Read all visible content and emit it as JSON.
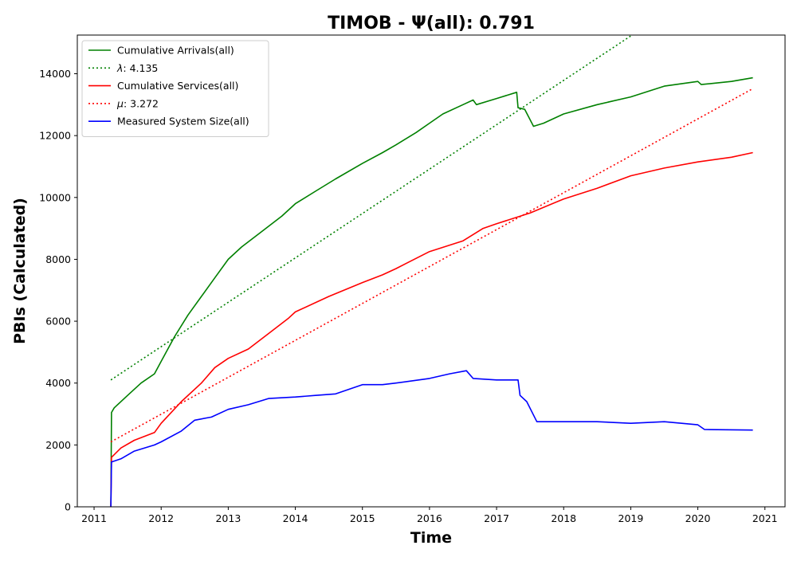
{
  "chart_data": {
    "type": "line",
    "title": "TIMOB -  Ψ(all): 0.791",
    "xlabel": "Time",
    "ylabel": "PBIs (Calculated)",
    "xlim": [
      2010.75,
      2021.3
    ],
    "ylim": [
      0,
      15250
    ],
    "x_ticks": [
      2011,
      2012,
      2013,
      2014,
      2015,
      2016,
      2017,
      2018,
      2019,
      2020,
      2021
    ],
    "x_tick_labels": [
      "2011",
      "2012",
      "2013",
      "2014",
      "2015",
      "2016",
      "2017",
      "2018",
      "2019",
      "2020",
      "2021"
    ],
    "y_ticks": [
      0,
      2000,
      4000,
      6000,
      8000,
      10000,
      12000,
      14000
    ],
    "y_tick_labels": [
      "0",
      "2000",
      "4000",
      "6000",
      "8000",
      "10000",
      "12000",
      "14000"
    ],
    "grid": false,
    "legend_position": "top-left",
    "series": [
      {
        "name": "Cumulative Arrivals(all)",
        "color": "#008000",
        "style": "solid",
        "points": [
          [
            2011.25,
            0
          ],
          [
            2011.26,
            3050
          ],
          [
            2011.3,
            3200
          ],
          [
            2011.5,
            3600
          ],
          [
            2011.7,
            4000
          ],
          [
            2011.9,
            4300
          ],
          [
            2012.0,
            4700
          ],
          [
            2012.2,
            5500
          ],
          [
            2012.4,
            6200
          ],
          [
            2012.6,
            6800
          ],
          [
            2012.8,
            7400
          ],
          [
            2013.0,
            8000
          ],
          [
            2013.2,
            8400
          ],
          [
            2013.5,
            8900
          ],
          [
            2013.8,
            9400
          ],
          [
            2014.0,
            9800
          ],
          [
            2014.3,
            10200
          ],
          [
            2014.6,
            10600
          ],
          [
            2015.0,
            11100
          ],
          [
            2015.3,
            11450
          ],
          [
            2015.5,
            11700
          ],
          [
            2015.8,
            12100
          ],
          [
            2016.0,
            12400
          ],
          [
            2016.2,
            12700
          ],
          [
            2016.5,
            13000
          ],
          [
            2016.65,
            13150
          ],
          [
            2016.7,
            13000
          ],
          [
            2017.0,
            13200
          ],
          [
            2017.3,
            13400
          ],
          [
            2017.32,
            12900
          ],
          [
            2017.42,
            12850
          ],
          [
            2017.55,
            12300
          ],
          [
            2017.7,
            12400
          ],
          [
            2018.0,
            12700
          ],
          [
            2018.5,
            13000
          ],
          [
            2019.0,
            13250
          ],
          [
            2019.5,
            13600
          ],
          [
            2020.0,
            13750
          ],
          [
            2020.05,
            13650
          ],
          [
            2020.5,
            13750
          ],
          [
            2020.82,
            13870
          ]
        ]
      },
      {
        "name": "λ: 4.135",
        "color": "#008000",
        "style": "dotted",
        "points": [
          [
            2011.25,
            4100
          ],
          [
            2019.02,
            15250
          ]
        ]
      },
      {
        "name": "Cumulative Services(all)",
        "color": "#ff0000",
        "style": "solid",
        "points": [
          [
            2011.25,
            0
          ],
          [
            2011.26,
            1600
          ],
          [
            2011.4,
            1900
          ],
          [
            2011.6,
            2150
          ],
          [
            2011.9,
            2400
          ],
          [
            2012.0,
            2700
          ],
          [
            2012.3,
            3400
          ],
          [
            2012.6,
            4000
          ],
          [
            2012.8,
            4500
          ],
          [
            2013.0,
            4800
          ],
          [
            2013.3,
            5100
          ],
          [
            2013.6,
            5600
          ],
          [
            2013.9,
            6100
          ],
          [
            2014.0,
            6300
          ],
          [
            2014.5,
            6800
          ],
          [
            2015.0,
            7250
          ],
          [
            2015.3,
            7500
          ],
          [
            2015.5,
            7700
          ],
          [
            2016.0,
            8250
          ],
          [
            2016.5,
            8600
          ],
          [
            2016.8,
            9000
          ],
          [
            2017.0,
            9150
          ],
          [
            2017.5,
            9500
          ],
          [
            2018.0,
            9950
          ],
          [
            2018.5,
            10300
          ],
          [
            2019.0,
            10700
          ],
          [
            2019.5,
            10950
          ],
          [
            2020.0,
            11150
          ],
          [
            2020.5,
            11300
          ],
          [
            2020.82,
            11450
          ]
        ]
      },
      {
        "name": "μ: 3.272",
        "color": "#ff0000",
        "style": "dotted",
        "points": [
          [
            2011.25,
            2100
          ],
          [
            2020.82,
            13520
          ]
        ]
      },
      {
        "name": "Measured System Size(all)",
        "color": "#0000ff",
        "style": "solid",
        "points": [
          [
            2011.25,
            0
          ],
          [
            2011.26,
            1450
          ],
          [
            2011.4,
            1550
          ],
          [
            2011.6,
            1800
          ],
          [
            2011.9,
            2000
          ],
          [
            2012.0,
            2100
          ],
          [
            2012.3,
            2450
          ],
          [
            2012.5,
            2800
          ],
          [
            2012.75,
            2900
          ],
          [
            2013.0,
            3150
          ],
          [
            2013.3,
            3300
          ],
          [
            2013.6,
            3500
          ],
          [
            2014.0,
            3550
          ],
          [
            2014.3,
            3600
          ],
          [
            2014.6,
            3650
          ],
          [
            2015.0,
            3950
          ],
          [
            2015.3,
            3950
          ],
          [
            2015.5,
            4000
          ],
          [
            2016.0,
            4150
          ],
          [
            2016.3,
            4300
          ],
          [
            2016.55,
            4400
          ],
          [
            2016.65,
            4150
          ],
          [
            2017.0,
            4100
          ],
          [
            2017.32,
            4100
          ],
          [
            2017.35,
            3600
          ],
          [
            2017.45,
            3400
          ],
          [
            2017.6,
            2750
          ],
          [
            2018.0,
            2750
          ],
          [
            2018.5,
            2750
          ],
          [
            2019.0,
            2700
          ],
          [
            2019.5,
            2750
          ],
          [
            2020.0,
            2650
          ],
          [
            2020.1,
            2500
          ],
          [
            2020.82,
            2480
          ]
        ]
      }
    ]
  }
}
